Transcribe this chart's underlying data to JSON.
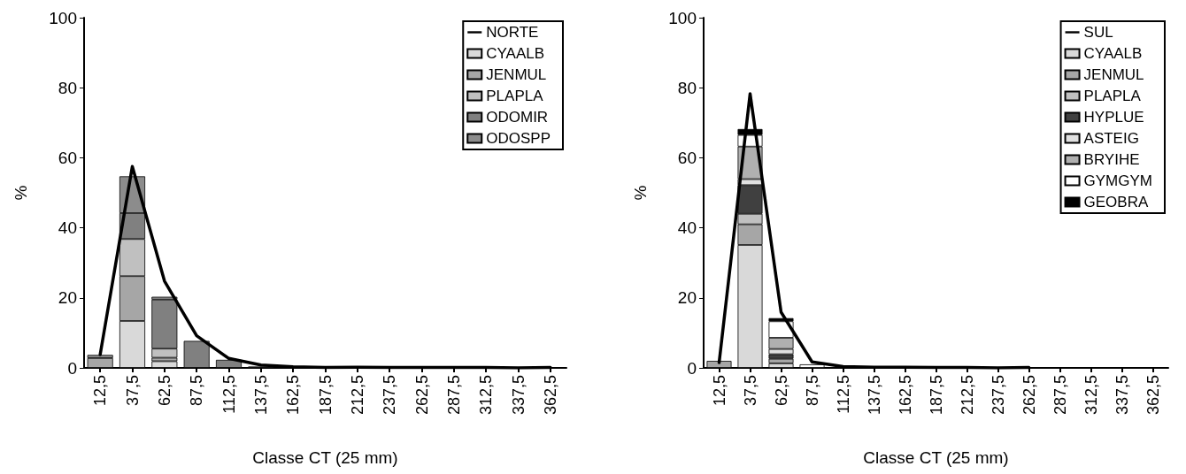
{
  "chart_data": [
    {
      "type": "bar",
      "stacked": true,
      "xlabel": "Classe CT (25 mm)",
      "ylabel": "%",
      "ylim": [
        0,
        100
      ],
      "yticks": [
        0,
        20,
        40,
        60,
        80,
        100
      ],
      "grid": false,
      "legend": "top right",
      "marker": "none",
      "categories": [
        "12,5",
        "37,5",
        "62,5",
        "87,5",
        "112,5",
        "137,5",
        "162,5",
        "187,5",
        "212,5",
        "237,5",
        "262,5",
        "287,5",
        "312,5",
        "337,5",
        "362,5"
      ],
      "series": [
        {
          "name": "NORTE",
          "type": "line",
          "color": "#000000",
          "values": [
            3.8,
            57.5,
            24.8,
            9.2,
            2.7,
            0.8,
            0.3,
            0.1,
            0.2,
            0.1,
            0.1,
            0.1,
            0.1,
            0,
            0.1
          ]
        },
        {
          "name": "CYAALB",
          "color": "#d9d9d9",
          "values": [
            null,
            13.4,
            1.9,
            null,
            null,
            null,
            null,
            null,
            null,
            null,
            null,
            null,
            null,
            null,
            null
          ]
        },
        {
          "name": "JENMUL",
          "color": "#a6a6a6",
          "values": [
            2.8,
            12.8,
            1.0,
            null,
            null,
            null,
            null,
            null,
            null,
            null,
            null,
            null,
            null,
            null,
            null
          ]
        },
        {
          "name": "PLAPLA",
          "color": "#c0c0c0",
          "values": [
            null,
            10.6,
            2.6,
            null,
            null,
            null,
            null,
            null,
            null,
            null,
            null,
            null,
            null,
            null,
            null
          ]
        },
        {
          "name": "ODOMIR",
          "color": "#808080",
          "values": [
            null,
            7.4,
            14.0,
            7.7,
            2.3,
            0.4,
            null,
            null,
            null,
            null,
            null,
            null,
            null,
            null,
            null
          ]
        },
        {
          "name": "ODOSPP",
          "color": "#8c8c8c",
          "values": [
            0.9,
            10.5,
            0.8,
            null,
            null,
            null,
            null,
            null,
            null,
            null,
            null,
            null,
            null,
            null,
            null
          ]
        }
      ]
    },
    {
      "type": "bar",
      "stacked": true,
      "xlabel": "Classe CT (25 mm)",
      "ylabel": "%",
      "ylim": [
        0,
        100
      ],
      "yticks": [
        0,
        20,
        40,
        60,
        80,
        100
      ],
      "grid": false,
      "legend": "top right",
      "marker": "none",
      "categories": [
        "12,5",
        "37,5",
        "62,5",
        "87,5",
        "112,5",
        "137,5",
        "162,5",
        "187,5",
        "212,5",
        "237,5",
        "262,5",
        "287,5",
        "312,5",
        "337,5",
        "362,5"
      ],
      "series": [
        {
          "name": "SUL",
          "type": "line",
          "color": "#000000",
          "values": [
            1.5,
            78.3,
            15.9,
            1.7,
            0.4,
            0.2,
            0.2,
            0.1,
            0.1,
            0,
            0.1,
            null,
            null,
            null,
            null
          ]
        },
        {
          "name": "CYAALB",
          "color": "#d9d9d9",
          "values": [
            null,
            35.1,
            1.3,
            null,
            null,
            null,
            null,
            null,
            null,
            null,
            null,
            null,
            null,
            null,
            null
          ]
        },
        {
          "name": "JENMUL",
          "color": "#a6a6a6",
          "values": [
            2.0,
            5.9,
            1.3,
            null,
            null,
            null,
            null,
            null,
            null,
            null,
            null,
            null,
            null,
            null,
            null
          ]
        },
        {
          "name": "PLAPLA",
          "color": "#c0c0c0",
          "values": [
            null,
            3.0,
            null,
            null,
            null,
            null,
            null,
            null,
            null,
            null,
            null,
            null,
            null,
            null,
            null
          ]
        },
        {
          "name": "HYPLUE",
          "color": "#404040",
          "values": [
            null,
            8.2,
            1.3,
            null,
            null,
            null,
            null,
            null,
            null,
            null,
            null,
            null,
            null,
            null,
            null
          ]
        },
        {
          "name": "ASTEIG",
          "color": "#e0e0e0",
          "values": [
            null,
            1.7,
            1.5,
            null,
            null,
            null,
            null,
            null,
            null,
            null,
            null,
            null,
            null,
            null,
            null
          ]
        },
        {
          "name": "BRYIHE",
          "color": "#b0b0b0",
          "values": [
            null,
            9.3,
            3.2,
            null,
            null,
            null,
            null,
            null,
            null,
            null,
            null,
            null,
            null,
            null,
            null
          ]
        },
        {
          "name": "GYMGYM",
          "color": "#ffffff",
          "values": [
            null,
            3.3,
            4.7,
            1.0,
            null,
            null,
            null,
            null,
            null,
            null,
            null,
            null,
            null,
            null,
            null
          ]
        },
        {
          "name": "GEOBRA",
          "color": "#000000",
          "values": [
            null,
            1.7,
            0.9,
            null,
            null,
            null,
            null,
            null,
            null,
            null,
            null,
            null,
            null,
            null,
            null
          ]
        }
      ]
    }
  ]
}
